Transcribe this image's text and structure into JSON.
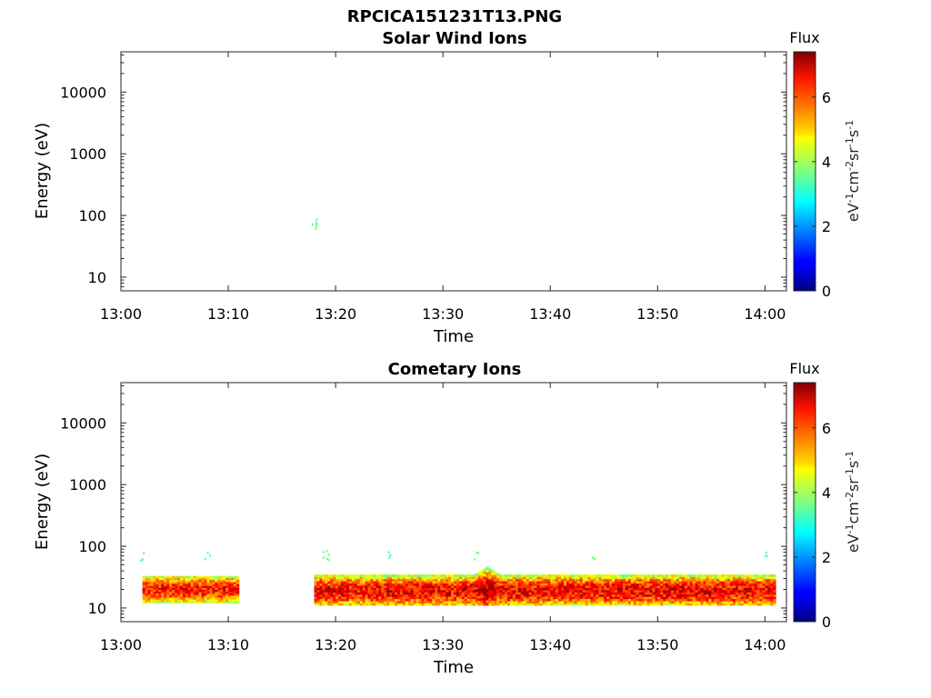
{
  "figure_title": "RPCICA151231T13.PNG",
  "colorbar": {
    "title": "Flux",
    "label": "eV",
    "ticks": [
      "0",
      "2",
      "4",
      "6"
    ],
    "tick_values": [
      0,
      2,
      4,
      6
    ],
    "range": [
      0,
      7.4
    ],
    "colormap": "jet"
  },
  "chart_data": [
    {
      "type": "heatmap",
      "title": "Solar Wind Ions",
      "xlabel": "Time",
      "ylabel": "Energy (eV)",
      "x_range": [
        "13:00",
        "14:02"
      ],
      "x_ticks": [
        "13:00",
        "13:10",
        "13:20",
        "13:30",
        "13:40",
        "13:50",
        "14:00"
      ],
      "y_scale": "log",
      "y_range": [
        6,
        45000
      ],
      "y_ticks": [
        "10",
        "100",
        "1000",
        "10000"
      ],
      "y_tick_values": [
        10,
        100,
        1000,
        10000
      ],
      "bands": [],
      "sparse_points": [
        {
          "time": "13:18",
          "energy": 75,
          "flux": 3.6
        },
        {
          "time": "13:18",
          "energy": 85,
          "flux": 3.5
        }
      ]
    },
    {
      "type": "heatmap",
      "title": "Cometary Ions",
      "xlabel": "Time",
      "ylabel": "Energy (eV)",
      "x_range": [
        "13:00",
        "14:02"
      ],
      "x_ticks": [
        "13:00",
        "13:10",
        "13:20",
        "13:30",
        "13:40",
        "13:50",
        "14:00"
      ],
      "y_scale": "log",
      "y_range": [
        6,
        45000
      ],
      "y_ticks": [
        "10",
        "100",
        "1000",
        "10000"
      ],
      "y_tick_values": [
        10,
        100,
        1000,
        10000
      ],
      "bands": [
        {
          "start": "13:02",
          "end": "13:11",
          "energy_min": 12,
          "energy_max": 33,
          "peak_energy": 20,
          "peak_flux": 6.3
        },
        {
          "start": "13:18",
          "end": "14:01",
          "energy_min": 11,
          "energy_max": 35,
          "peak_energy": 19,
          "peak_flux": 6.5
        }
      ],
      "features": [
        {
          "time": "13:34",
          "energy_min": 18,
          "energy_max": 50,
          "flux": 6.8,
          "note": "enhancement"
        }
      ],
      "sparse_points": [
        {
          "time": "13:02",
          "energy": 70,
          "flux": 3.4
        },
        {
          "time": "13:08",
          "energy": 70,
          "flux": 3.4
        },
        {
          "time": "13:19",
          "energy": 75,
          "flux": 3.6
        },
        {
          "time": "13:19",
          "energy": 60,
          "flux": 3.5
        },
        {
          "time": "13:25",
          "energy": 75,
          "flux": 3.3
        },
        {
          "time": "13:33",
          "energy": 70,
          "flux": 3.6
        },
        {
          "time": "13:44",
          "energy": 75,
          "flux": 3.7
        },
        {
          "time": "14:00",
          "energy": 70,
          "flux": 3.4
        }
      ]
    }
  ]
}
